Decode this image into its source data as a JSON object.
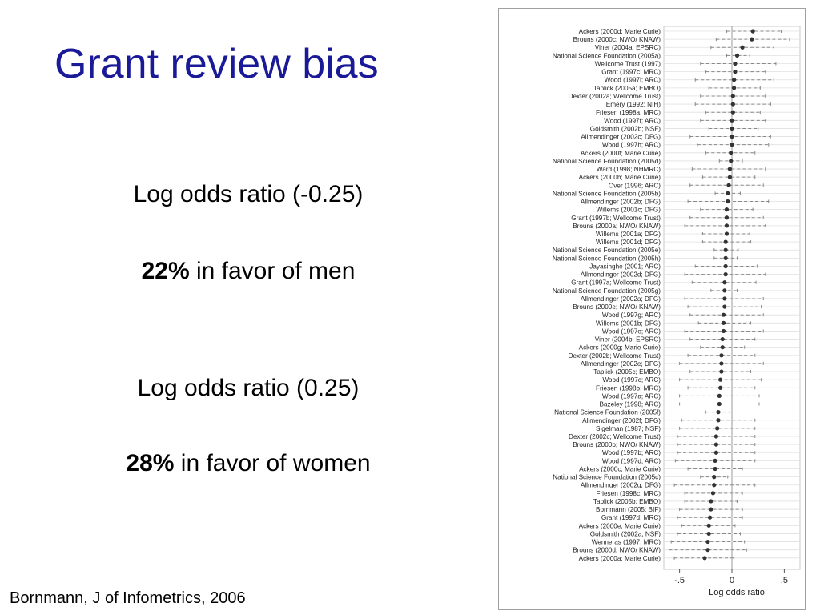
{
  "slide": {
    "title": "Grant review bias",
    "stat1": {
      "label": "Log odds ratio (-0.25)",
      "percent": "22%",
      "rest": " in favor of men"
    },
    "stat2": {
      "label": "Log odds ratio (0.25)",
      "percent": "28%",
      "rest": " in favor of women"
    },
    "citation": "Bornmann, J of Infometrics, 2006"
  },
  "chart_data": {
    "type": "scatter",
    "subtype": "forest-plot",
    "xlabel": "Log odds ratio",
    "xlim": [
      -0.65,
      0.65
    ],
    "xticks": [
      -0.5,
      0,
      0.5
    ],
    "xtick_labels": [
      "-.5",
      "0",
      ".5"
    ],
    "reference_line": 0,
    "grid": "horizontal",
    "colors": {
      "point": "#333333",
      "interval": "#888888",
      "grid": "#e0e0e0",
      "axis": "#555555"
    },
    "studies": [
      {
        "label": "Ackers (2000d; Marie Curie)",
        "est": 0.2,
        "lo": -0.05,
        "hi": 0.47
      },
      {
        "label": "Brouns (2000c; NWO/ KNAW)",
        "est": 0.19,
        "lo": -0.15,
        "hi": 0.55
      },
      {
        "label": "Viner (2004a; EPSRC)",
        "est": 0.1,
        "lo": -0.2,
        "hi": 0.4
      },
      {
        "label": "National Science Foundation (2005a)",
        "est": 0.05,
        "lo": -0.05,
        "hi": 0.17
      },
      {
        "label": "Wellcome Trust (1997)",
        "est": 0.03,
        "lo": -0.3,
        "hi": 0.42
      },
      {
        "label": "Grant (1997c; MRC)",
        "est": 0.03,
        "lo": -0.25,
        "hi": 0.32
      },
      {
        "label": "Wood (1997i; ARC)",
        "est": 0.02,
        "lo": -0.35,
        "hi": 0.4
      },
      {
        "label": "Taplick (2005a; EMBO)",
        "est": 0.02,
        "lo": -0.22,
        "hi": 0.27
      },
      {
        "label": "Dexter (2002a; Wellcome Trust)",
        "est": 0.01,
        "lo": -0.3,
        "hi": 0.32
      },
      {
        "label": "Emery (1992; NIH)",
        "est": 0.01,
        "lo": -0.35,
        "hi": 0.37
      },
      {
        "label": "Friesen (1998a; MRC)",
        "est": 0.01,
        "lo": -0.25,
        "hi": 0.27
      },
      {
        "label": "Wood (1997f; ARC)",
        "est": 0.0,
        "lo": -0.3,
        "hi": 0.32
      },
      {
        "label": "Goldsmith (2002b; NSF)",
        "est": 0.0,
        "lo": -0.22,
        "hi": 0.25
      },
      {
        "label": "Allmendinger (2002c; DFG)",
        "est": 0.0,
        "lo": -0.4,
        "hi": 0.37
      },
      {
        "label": "Wood (1997h; ARC)",
        "est": 0.0,
        "lo": -0.33,
        "hi": 0.35
      },
      {
        "label": "Ackers (2000f; Marie Curie)",
        "est": -0.01,
        "lo": -0.25,
        "hi": 0.22
      },
      {
        "label": "National Science Foundation (2005d)",
        "est": -0.01,
        "lo": -0.12,
        "hi": 0.1
      },
      {
        "label": "Ward (1998; NHMRC)",
        "est": -0.02,
        "lo": -0.38,
        "hi": 0.32
      },
      {
        "label": "Ackers (2000b; Marie Curie)",
        "est": -0.02,
        "lo": -0.28,
        "hi": 0.22
      },
      {
        "label": "Over (1996; ARC)",
        "est": -0.03,
        "lo": -0.4,
        "hi": 0.3
      },
      {
        "label": "National Science Foundation (2005b)",
        "est": -0.04,
        "lo": -0.16,
        "hi": 0.08
      },
      {
        "label": "Allmendinger (2002b; DFG)",
        "est": -0.04,
        "lo": -0.42,
        "hi": 0.35
      },
      {
        "label": "Willems (2001c; DFG)",
        "est": -0.05,
        "lo": -0.3,
        "hi": 0.2
      },
      {
        "label": "Grant (1997b; Wellcome Trust)",
        "est": -0.05,
        "lo": -0.4,
        "hi": 0.3
      },
      {
        "label": "Brouns (2000a; NWO/ KNAW)",
        "est": -0.05,
        "lo": -0.45,
        "hi": 0.32
      },
      {
        "label": "Willems (2001a; DFG)",
        "est": -0.05,
        "lo": -0.28,
        "hi": 0.17
      },
      {
        "label": "Willems (2001d; DFG)",
        "est": -0.06,
        "lo": -0.28,
        "hi": 0.18
      },
      {
        "label": "National Science Foundation (2005e)",
        "est": -0.06,
        "lo": -0.17,
        "hi": 0.06
      },
      {
        "label": "National Science Foundation (2005h)",
        "est": -0.06,
        "lo": -0.17,
        "hi": 0.05
      },
      {
        "label": "Jayasinghe (2001; ARC)",
        "est": -0.06,
        "lo": -0.35,
        "hi": 0.24
      },
      {
        "label": "Allmendinger (2002d; DFG)",
        "est": -0.06,
        "lo": -0.45,
        "hi": 0.32
      },
      {
        "label": "Grant (1997a; Wellcome Trust)",
        "est": -0.07,
        "lo": -0.38,
        "hi": 0.23
      },
      {
        "label": "National Science Foundation (2005g)",
        "est": -0.07,
        "lo": -0.2,
        "hi": 0.05
      },
      {
        "label": "Allmendinger (2002a; DFG)",
        "est": -0.07,
        "lo": -0.45,
        "hi": 0.3
      },
      {
        "label": "Brouns (2000e; NWO/ KNAW)",
        "est": -0.07,
        "lo": -0.42,
        "hi": 0.28
      },
      {
        "label": "Wood (1997g; ARC)",
        "est": -0.08,
        "lo": -0.4,
        "hi": 0.3
      },
      {
        "label": "Willems (2001b; DFG)",
        "est": -0.08,
        "lo": -0.32,
        "hi": 0.18
      },
      {
        "label": "Wood (1997e; ARC)",
        "est": -0.08,
        "lo": -0.45,
        "hi": 0.3
      },
      {
        "label": "Viner (2004b; EPSRC)",
        "est": -0.09,
        "lo": -0.4,
        "hi": 0.22
      },
      {
        "label": "Ackers (2000g; Marie Curie)",
        "est": -0.09,
        "lo": -0.3,
        "hi": 0.12
      },
      {
        "label": "Dexter (2002b; Wellcome Trust)",
        "est": -0.1,
        "lo": -0.42,
        "hi": 0.22
      },
      {
        "label": "Allmendinger (2002e; DFG)",
        "est": -0.1,
        "lo": -0.5,
        "hi": 0.3
      },
      {
        "label": "Taplick (2005c; EMBO)",
        "est": -0.1,
        "lo": -0.4,
        "hi": 0.18
      },
      {
        "label": "Wood (1997c; ARC)",
        "est": -0.11,
        "lo": -0.5,
        "hi": 0.28
      },
      {
        "label": "Friesen (1998b; MRC)",
        "est": -0.11,
        "lo": -0.42,
        "hi": 0.22
      },
      {
        "label": "Wood (1997a; ARC)",
        "est": -0.12,
        "lo": -0.5,
        "hi": 0.26
      },
      {
        "label": "Bazeley (1998; ARC)",
        "est": -0.12,
        "lo": -0.5,
        "hi": 0.26
      },
      {
        "label": "National Science Foundation (2005f)",
        "est": -0.13,
        "lo": -0.25,
        "hi": -0.02
      },
      {
        "label": "Allmendinger (2002f; DFG)",
        "est": -0.13,
        "lo": -0.48,
        "hi": 0.22
      },
      {
        "label": "Sigelman (1987; NSF)",
        "est": -0.14,
        "lo": -0.5,
        "hi": 0.22
      },
      {
        "label": "Dexter (2002c; Wellcome Trust)",
        "est": -0.15,
        "lo": -0.52,
        "hi": 0.22
      },
      {
        "label": "Brouns (2000b; NWO/ KNAW)",
        "est": -0.15,
        "lo": -0.52,
        "hi": 0.22
      },
      {
        "label": "Wood (1997b; ARC)",
        "est": -0.15,
        "lo": -0.52,
        "hi": 0.22
      },
      {
        "label": "Wood (1997d; ARC)",
        "est": -0.16,
        "lo": -0.54,
        "hi": 0.22
      },
      {
        "label": "Ackers (2000c; Marie Curie)",
        "est": -0.16,
        "lo": -0.42,
        "hi": 0.1
      },
      {
        "label": "National Science Foundation (2005c)",
        "est": -0.17,
        "lo": -0.3,
        "hi": -0.04
      },
      {
        "label": "Allmendinger (2002g; DFG)",
        "est": -0.17,
        "lo": -0.55,
        "hi": 0.22
      },
      {
        "label": "Friesen (1998c; MRC)",
        "est": -0.18,
        "lo": -0.45,
        "hi": 0.1
      },
      {
        "label": "Taplick (2005b; EMBO)",
        "est": -0.2,
        "lo": -0.45,
        "hi": 0.05
      },
      {
        "label": "Bornmann (2005; BIF)",
        "est": -0.2,
        "lo": -0.5,
        "hi": 0.1
      },
      {
        "label": "Grant (1997d; MRC)",
        "est": -0.21,
        "lo": -0.52,
        "hi": 0.1
      },
      {
        "label": "Ackers (2000e; Marie Curie)",
        "est": -0.22,
        "lo": -0.48,
        "hi": 0.03
      },
      {
        "label": "Goldsmith (2002a; NSF)",
        "est": -0.22,
        "lo": -0.52,
        "hi": 0.08
      },
      {
        "label": "Wenneras (1997; MRC)",
        "est": -0.23,
        "lo": -0.58,
        "hi": 0.12
      },
      {
        "label": "Brouns (2000d; NWO/ KNAW)",
        "est": -0.23,
        "lo": -0.6,
        "hi": 0.14
      },
      {
        "label": "Ackers (2000a; Marie Curie)",
        "est": -0.26,
        "lo": -0.55,
        "hi": 0.02
      }
    ]
  }
}
